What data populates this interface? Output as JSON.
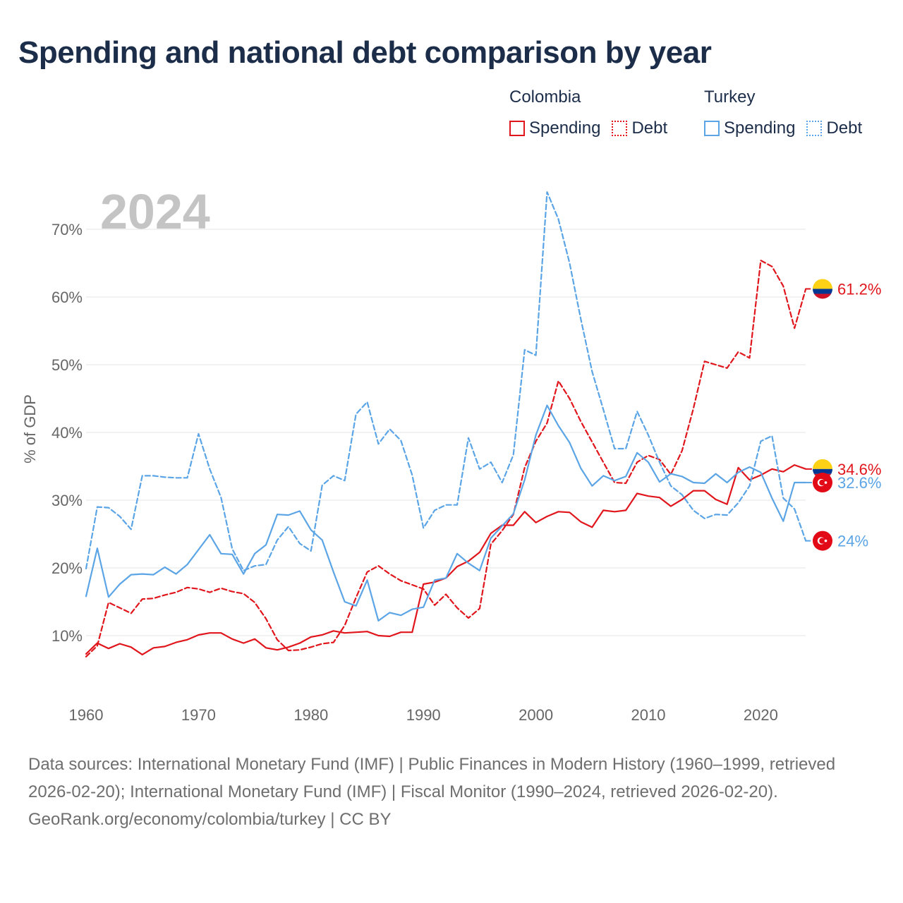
{
  "title": "Spending and national debt comparison by year",
  "legend": {
    "groups": [
      {
        "name": "Colombia",
        "items": [
          "Spending",
          "Debt"
        ]
      },
      {
        "name": "Turkey",
        "items": [
          "Spending",
          "Debt"
        ]
      }
    ]
  },
  "colors": {
    "colombia": "#e0161c",
    "turkey": "#5ba5e6",
    "year_watermark": "#c4c4c4"
  },
  "year_label": "2024",
  "sources": {
    "text": "Data sources: International Monetary Fund (IMF) | Public Finances in Modern History (1960–1999, retrieved 2026-02-20); International Monetary Fund (IMF) | Fiscal Monitor (1990–2024, retrieved 2026-02-20).",
    "credit": "GeoRank.org/economy/colombia/turkey | CC BY"
  },
  "chart_data": {
    "type": "line",
    "ylabel": "% of GDP",
    "xlabel": "",
    "xlim": [
      1960,
      2024
    ],
    "ylim": [
      5,
      76
    ],
    "x_ticks": [
      1960,
      1970,
      1980,
      1990,
      2000,
      2010,
      2020
    ],
    "y_ticks": [
      10,
      20,
      30,
      40,
      50,
      60,
      70
    ],
    "y_tick_labels": [
      "10%",
      "20%",
      "30%",
      "40%",
      "50%",
      "60%",
      "70%"
    ],
    "grid": true,
    "end_labels": [
      {
        "series": "Colombia Debt",
        "text": "61.2%",
        "flag": "colombia-flag-icon"
      },
      {
        "series": "Colombia Spending",
        "text": "34.6%",
        "flag": "colombia-flag-icon"
      },
      {
        "series": "Turkey Spending",
        "text": "32.6%",
        "flag": "turkey-flag-icon"
      },
      {
        "series": "Turkey Debt",
        "text": "24%",
        "flag": "turkey-flag-icon"
      }
    ],
    "series": [
      {
        "name": "Colombia Spending",
        "country": "Colombia",
        "measure": "Spending",
        "style": "solid",
        "start_year": 1960,
        "values": [
          7.3,
          8.9,
          8.1,
          8.8,
          8.3,
          7.2,
          8.2,
          8.4,
          9.0,
          9.4,
          10.1,
          10.4,
          10.4,
          9.5,
          8.9,
          9.5,
          8.2,
          7.9,
          8.3,
          8.9,
          9.8,
          10.1,
          10.7,
          10.4,
          10.5,
          10.6,
          10.0,
          9.9,
          10.5,
          10.5,
          17.6,
          17.9,
          18.5,
          20.2,
          21.0,
          22.3,
          25.1,
          26.3,
          26.3,
          28.3,
          26.7,
          27.6,
          28.3,
          28.2,
          26.8,
          26.0,
          28.5,
          28.3,
          28.5,
          31.0,
          30.6,
          30.4,
          29.1,
          30.1,
          31.4,
          31.4,
          30.1,
          29.4,
          34.8,
          33.0,
          33.7,
          34.6,
          34.2,
          35.2,
          34.6
        ]
      },
      {
        "name": "Colombia Debt",
        "country": "Colombia",
        "measure": "Debt",
        "style": "dashed",
        "start_year": 1960,
        "values": [
          6.9,
          8.5,
          14.9,
          14.1,
          13.3,
          15.4,
          15.5,
          16.0,
          16.4,
          17.1,
          16.9,
          16.4,
          17.0,
          16.5,
          16.2,
          14.9,
          12.5,
          9.4,
          7.8,
          7.9,
          8.3,
          8.8,
          9.0,
          11.5,
          15.6,
          19.4,
          20.3,
          19.1,
          18.1,
          17.5,
          16.9,
          14.5,
          16.1,
          14.1,
          12.6,
          14.0,
          23.5,
          25.5,
          27.9,
          34.8,
          38.7,
          41.4,
          47.6,
          45.0,
          41.6,
          38.6,
          35.6,
          32.6,
          32.5,
          35.6,
          36.6,
          36.0,
          33.8,
          37.3,
          43.5,
          50.5,
          50.0,
          49.5,
          51.9,
          51.0,
          65.4,
          64.5,
          61.6,
          55.4,
          61.2
        ]
      },
      {
        "name": "Turkey Spending",
        "country": "Turkey",
        "measure": "Spending",
        "style": "solid",
        "start_year": 1960,
        "values": [
          15.8,
          22.9,
          15.7,
          17.6,
          19.0,
          19.1,
          19.0,
          20.1,
          19.1,
          20.5,
          22.7,
          24.9,
          22.1,
          22.0,
          19.1,
          22.1,
          23.4,
          27.9,
          27.8,
          28.4,
          25.6,
          24.1,
          19.4,
          15.0,
          14.4,
          18.2,
          12.2,
          13.4,
          13.0,
          13.9,
          14.2,
          18.2,
          18.5,
          22.1,
          20.7,
          19.6,
          24.4,
          26.2,
          28.0,
          33.0,
          39.6,
          44.0,
          41.0,
          38.5,
          34.7,
          32.1,
          33.6,
          32.9,
          33.5,
          37.0,
          35.6,
          32.7,
          33.9,
          33.5,
          32.6,
          32.5,
          33.9,
          32.6,
          34.1,
          34.9,
          34.1,
          30.3,
          26.9,
          32.6,
          32.6
        ]
      },
      {
        "name": "Turkey Debt",
        "country": "Turkey",
        "measure": "Debt",
        "style": "dashed",
        "start_year": 1960,
        "values": [
          19.9,
          29.0,
          28.9,
          27.6,
          25.7,
          33.6,
          33.6,
          33.4,
          33.3,
          33.3,
          39.8,
          34.6,
          30.4,
          22.8,
          19.6,
          20.3,
          20.5,
          24.1,
          26.1,
          23.6,
          22.5,
          32.2,
          33.6,
          32.9,
          42.7,
          44.5,
          38.3,
          40.5,
          38.8,
          33.7,
          25.9,
          28.5,
          29.3,
          29.3,
          39.2,
          34.6,
          35.6,
          32.6,
          36.7,
          52.2,
          51.4,
          75.5,
          71.5,
          65.0,
          56.7,
          49.0,
          43.4,
          37.6,
          37.6,
          43.1,
          39.6,
          35.6,
          32.1,
          30.8,
          28.5,
          27.3,
          27.9,
          27.8,
          29.6,
          32.1,
          38.7,
          39.5,
          30.3,
          28.7,
          24.0
        ]
      }
    ]
  }
}
